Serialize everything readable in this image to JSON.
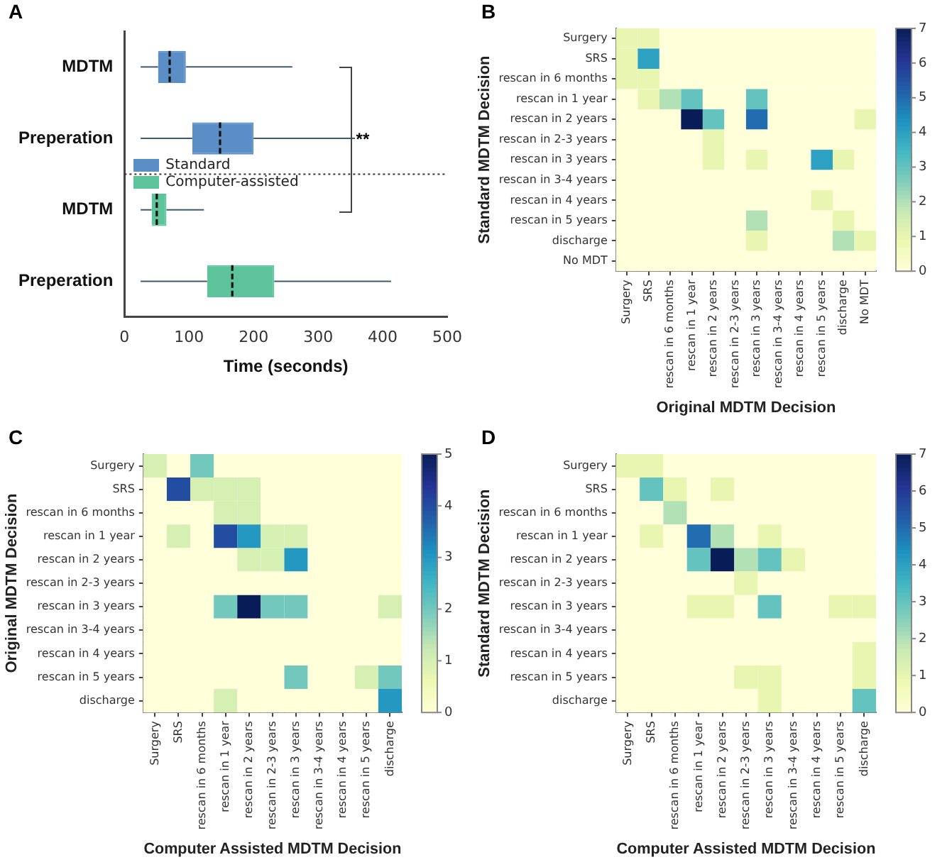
{
  "chart_data": [
    {
      "type": "box",
      "title": "A",
      "orientation": "horizontal",
      "categories": [
        "MDTM",
        "Preperation",
        "MDTM",
        "Preperation"
      ],
      "xlabel": "Time (seconds)",
      "xlim": [
        0,
        500
      ],
      "xticks": [
        0,
        100,
        200,
        300,
        400,
        500
      ],
      "legend": "left",
      "grid": false,
      "series": [
        {
          "name": "Standard",
          "color": "#5b8ec6",
          "boxes": [
            {
              "low": 25,
              "q1": 52,
              "median": 70,
              "q3": 95,
              "high": 260
            },
            {
              "low": 25,
              "q1": 105,
              "median": 148,
              "q3": 200,
              "high": 357
            },
            null,
            null
          ]
        },
        {
          "name": "Computer-assisted",
          "color": "#5cc39b",
          "boxes": [
            null,
            null,
            {
              "low": 25,
              "q1": 42,
              "median": 50,
              "q3": 65,
              "high": 123
            },
            {
              "low": 25,
              "q1": 128,
              "median": 167,
              "q3": 232,
              "high": 413
            }
          ]
        }
      ],
      "annotations": [
        "**"
      ]
    },
    {
      "type": "heatmap",
      "title": "B",
      "xlabel": "Original MDTM Decision",
      "ylabel": "Standard MDTM Decision",
      "clim": [
        0,
        7
      ],
      "cticks": [
        0,
        1,
        2,
        3,
        4,
        5,
        6,
        7
      ],
      "categories": [
        "Surgery",
        "SRS",
        "rescan in 6 months",
        "rescan in 1 year",
        "rescan in 2 years",
        "rescan in 2-3 years",
        "rescan in 3 years",
        "rescan in 3-4 years",
        "rescan in 4 years",
        "rescan in 5 years",
        "discharge",
        "No MDT"
      ],
      "y_categories": [
        "Surgery",
        "SRS",
        "rescan in 6 months",
        "rescan in 1 year",
        "rescan in 2 years",
        "rescan in 2-3 years",
        "rescan in 3 years",
        "rescan in 3-4 years",
        "rescan in 4 years",
        "rescan in 5 years",
        "discharge",
        "No MDT"
      ],
      "cells": [
        [
          1,
          1,
          0,
          0,
          0,
          0,
          0,
          0,
          0,
          0,
          0,
          0
        ],
        [
          1,
          4,
          0,
          0,
          0,
          0,
          0,
          0,
          0,
          0,
          0,
          0
        ],
        [
          1,
          1,
          0,
          0,
          0,
          0,
          0,
          0,
          0,
          0,
          0,
          0
        ],
        [
          0,
          1,
          2,
          3,
          0,
          0,
          3,
          0,
          0,
          0,
          0,
          0
        ],
        [
          0,
          0,
          0,
          7,
          3,
          0,
          5,
          0,
          0,
          0,
          0,
          1
        ],
        [
          0,
          0,
          0,
          0,
          1,
          0,
          0,
          0,
          0,
          0,
          0,
          0
        ],
        [
          0,
          0,
          0,
          0,
          1,
          0,
          1,
          0,
          0,
          4,
          1,
          0
        ],
        [
          0,
          0,
          0,
          0,
          0,
          0,
          0,
          0,
          0,
          0,
          0,
          0
        ],
        [
          0,
          0,
          0,
          0,
          0,
          0,
          0,
          0,
          0,
          1,
          0,
          0
        ],
        [
          0,
          0,
          0,
          0,
          0,
          0,
          2,
          0,
          0,
          0,
          1,
          0
        ],
        [
          0,
          0,
          0,
          0,
          0,
          0,
          1,
          0,
          0,
          0,
          2,
          1
        ],
        [
          0,
          0,
          0,
          0,
          0,
          0,
          0,
          0,
          0,
          0,
          0,
          0
        ]
      ]
    },
    {
      "type": "heatmap",
      "title": "C",
      "xlabel": "Computer Assisted MDTM Decision",
      "ylabel": "Original MDTM Decision",
      "clim": [
        0,
        5
      ],
      "cticks": [
        0,
        1,
        2,
        3,
        4,
        5
      ],
      "categories": [
        "Surgery",
        "SRS",
        "rescan in 6 months",
        "rescan in 1 year",
        "rescan in 2 years",
        "rescan in 2-3 years",
        "rescan in 3 years",
        "rescan in 3-4 years",
        "rescan in 4 years",
        "rescan in 5 years",
        "discharge"
      ],
      "y_categories": [
        "Surgery",
        "SRS",
        "rescan in 6 months",
        "rescan in 1 year",
        "rescan in 2 years",
        "rescan in 2-3 years",
        "rescan in 3 years",
        "rescan in 3-4 years",
        "rescan in 4 years",
        "rescan in 5 years",
        "discharge"
      ],
      "cells": [
        [
          1,
          0,
          2,
          0,
          0,
          0,
          0,
          0,
          0,
          0,
          0
        ],
        [
          0,
          4,
          1,
          1,
          1,
          0,
          0,
          0,
          0,
          0,
          0
        ],
        [
          0,
          0,
          0,
          1,
          1,
          0,
          0,
          0,
          0,
          0,
          0
        ],
        [
          0,
          1,
          0,
          4,
          3,
          1,
          1,
          0,
          0,
          0,
          0
        ],
        [
          0,
          0,
          0,
          0,
          1,
          1,
          3,
          0,
          0,
          0,
          0
        ],
        [
          0,
          0,
          0,
          0,
          0,
          0,
          0,
          0,
          0,
          0,
          0
        ],
        [
          0,
          0,
          0,
          2,
          5,
          2,
          2,
          0,
          0,
          0,
          1
        ],
        [
          0,
          0,
          0,
          0,
          0,
          0,
          0,
          0,
          0,
          0,
          0
        ],
        [
          0,
          0,
          0,
          0,
          0,
          0,
          0,
          0,
          0,
          0,
          0
        ],
        [
          0,
          0,
          0,
          0,
          0,
          0,
          2,
          0,
          0,
          1,
          2
        ],
        [
          0,
          0,
          0,
          1,
          0,
          0,
          0,
          0,
          0,
          0,
          3
        ]
      ]
    },
    {
      "type": "heatmap",
      "title": "D",
      "xlabel": "Computer Assisted MDTM Decision",
      "ylabel": "Standard MDTM Decision",
      "clim": [
        0,
        7
      ],
      "cticks": [
        0,
        1,
        2,
        3,
        4,
        5,
        6,
        7
      ],
      "categories": [
        "Surgery",
        "SRS",
        "rescan in 6 months",
        "rescan in 1 year",
        "rescan in 2 years",
        "rescan in 2-3 years",
        "rescan in 3 years",
        "rescan in 3-4 years",
        "rescan in 4 years",
        "rescan in 5 years",
        "discharge"
      ],
      "y_categories": [
        "Surgery",
        "SRS",
        "rescan in 6 months",
        "rescan in 1 year",
        "rescan in 2 years",
        "rescan in 2-3 years",
        "rescan in 3 years",
        "rescan in 3-4 years",
        "rescan in 4 years",
        "rescan in 5 years",
        "discharge"
      ],
      "cells": [
        [
          1,
          1,
          0,
          0,
          0,
          0,
          0,
          0,
          0,
          0,
          0
        ],
        [
          0,
          3,
          1,
          0,
          1,
          0,
          0,
          0,
          0,
          0,
          0
        ],
        [
          0,
          0,
          2,
          0,
          0,
          0,
          0,
          0,
          0,
          0,
          0
        ],
        [
          0,
          1,
          0,
          5,
          2,
          0,
          1,
          0,
          0,
          0,
          0
        ],
        [
          0,
          0,
          0,
          3,
          7,
          2,
          3,
          1,
          0,
          0,
          0
        ],
        [
          0,
          0,
          0,
          0,
          0,
          1,
          0,
          0,
          0,
          0,
          0
        ],
        [
          0,
          0,
          0,
          1,
          1,
          0,
          3,
          0,
          0,
          1,
          1
        ],
        [
          0,
          0,
          0,
          0,
          0,
          0,
          0,
          0,
          0,
          0,
          0
        ],
        [
          0,
          0,
          0,
          0,
          0,
          0,
          0,
          0,
          0,
          0,
          1
        ],
        [
          0,
          0,
          0,
          0,
          0,
          1,
          1,
          0,
          0,
          0,
          1
        ],
        [
          0,
          0,
          0,
          0,
          0,
          0,
          1,
          0,
          0,
          0,
          3
        ]
      ]
    }
  ]
}
